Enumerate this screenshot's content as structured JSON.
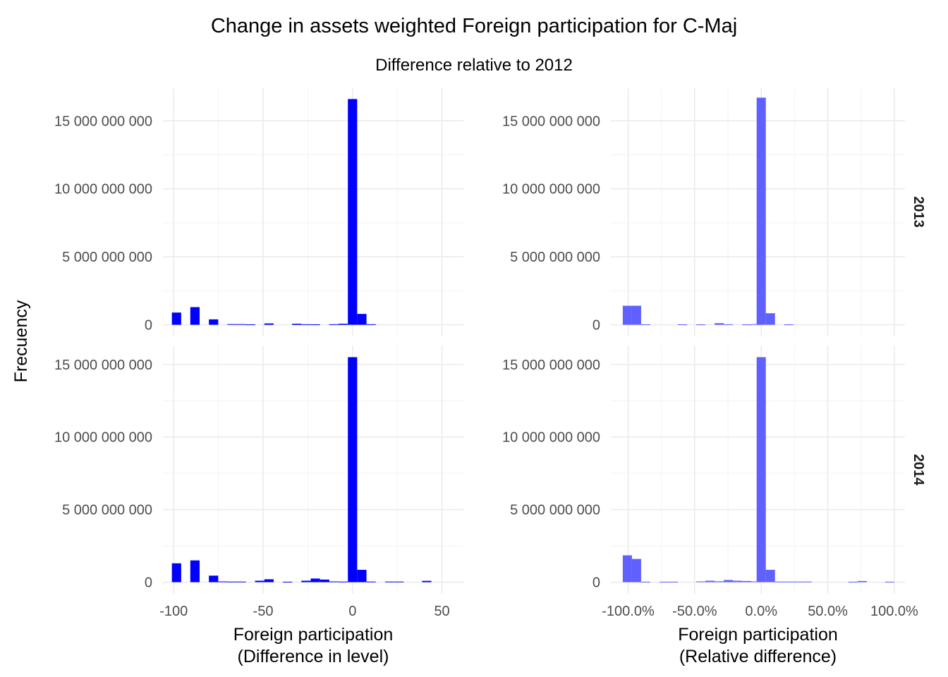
{
  "chart_data": {
    "type": "bar",
    "title": "Change in assets weighted Foreign participation for C-Maj",
    "subtitle": "Difference relative to 2012",
    "ylabel": "Frecuency",
    "colors": {
      "level": "#0000ff",
      "relative": "#6060ff"
    },
    "columns": [
      {
        "id": "level",
        "xlabel_lines": [
          "Foreign participation",
          "(Difference in level)"
        ],
        "xlim": [
          -106,
          62
        ],
        "xticks": [
          -100,
          -50,
          0,
          50
        ],
        "xtick_labels": [
          "-100",
          "-50",
          "0",
          "50"
        ],
        "bar_width": 5.2
      },
      {
        "id": "relative",
        "xlabel_lines": [
          "Foreign participation",
          "(Relative difference)"
        ],
        "xlim": [
          -113,
          108
        ],
        "xticks": [
          -100,
          -50,
          0,
          50,
          100
        ],
        "xtick_labels": [
          "-100.0%",
          "-50.0%",
          "0.0%",
          "50.0%",
          "100.0%"
        ],
        "bar_width": 6.9
      }
    ],
    "rows": [
      {
        "strip": "2013",
        "ylim": [
          -800000000,
          17400000000
        ],
        "yticks": [
          0,
          5000000000,
          10000000000,
          15000000000
        ],
        "ytick_labels": [
          "0",
          "5 000 000 000",
          "10 000 000 000",
          "15 000 000 000"
        ]
      },
      {
        "strip": "2014",
        "ylim": [
          -800000000,
          16300000000
        ],
        "yticks": [
          0,
          5000000000,
          10000000000,
          15000000000
        ],
        "ytick_labels": [
          "0",
          "5 000 000 000",
          "10 000 000 000",
          "15 000 000 000"
        ]
      }
    ],
    "panels": [
      {
        "row": 0,
        "col": 0,
        "x": [
          -98.4,
          -88.1,
          -77.7,
          -67.4,
          -62.2,
          -57.0,
          -46.7,
          -31.2,
          -26.0,
          -20.8,
          -10.5,
          -5.3,
          0.0,
          5.2,
          10.4
        ],
        "values": [
          900000000,
          1300000000,
          400000000,
          50000000,
          50000000,
          30000000,
          100000000,
          80000000,
          40000000,
          30000000,
          40000000,
          80000000,
          16600000000,
          800000000,
          40000000
        ]
      },
      {
        "row": 0,
        "col": 1,
        "x": [
          -100.6,
          -93.7,
          -86.8,
          -59.2,
          -45.4,
          -31.6,
          -24.7,
          -10.9,
          -4.0,
          0.0,
          6.9,
          20.7
        ],
        "values": [
          1400000000,
          1400000000,
          30000000,
          30000000,
          30000000,
          120000000,
          40000000,
          30000000,
          50000000,
          16700000000,
          850000000,
          30000000
        ]
      },
      {
        "row": 1,
        "col": 0,
        "x": [
          -98.4,
          -88.1,
          -77.7,
          -72.5,
          -67.4,
          -62.2,
          -51.9,
          -46.7,
          -36.3,
          -26.0,
          -20.8,
          -15.6,
          -10.5,
          -5.3,
          0.0,
          5.2,
          10.4,
          20.8,
          26.0,
          41.5
        ],
        "values": [
          1300000000,
          1500000000,
          450000000,
          50000000,
          40000000,
          40000000,
          100000000,
          200000000,
          30000000,
          100000000,
          250000000,
          180000000,
          50000000,
          40000000,
          15500000000,
          850000000,
          40000000,
          40000000,
          40000000,
          90000000
        ]
      },
      {
        "row": 1,
        "col": 1,
        "x": [
          -100.6,
          -93.7,
          -86.8,
          -72.9,
          -66.0,
          -45.4,
          -38.5,
          -31.6,
          -24.7,
          -17.8,
          -10.9,
          -4.0,
          0.0,
          6.9,
          13.8,
          20.7,
          27.6,
          34.5,
          68.9,
          75.8,
          96.5
        ],
        "values": [
          1850000000,
          1600000000,
          30000000,
          30000000,
          30000000,
          50000000,
          100000000,
          60000000,
          150000000,
          100000000,
          80000000,
          50000000,
          15500000000,
          850000000,
          40000000,
          40000000,
          40000000,
          40000000,
          30000000,
          80000000,
          30000000
        ]
      }
    ]
  }
}
